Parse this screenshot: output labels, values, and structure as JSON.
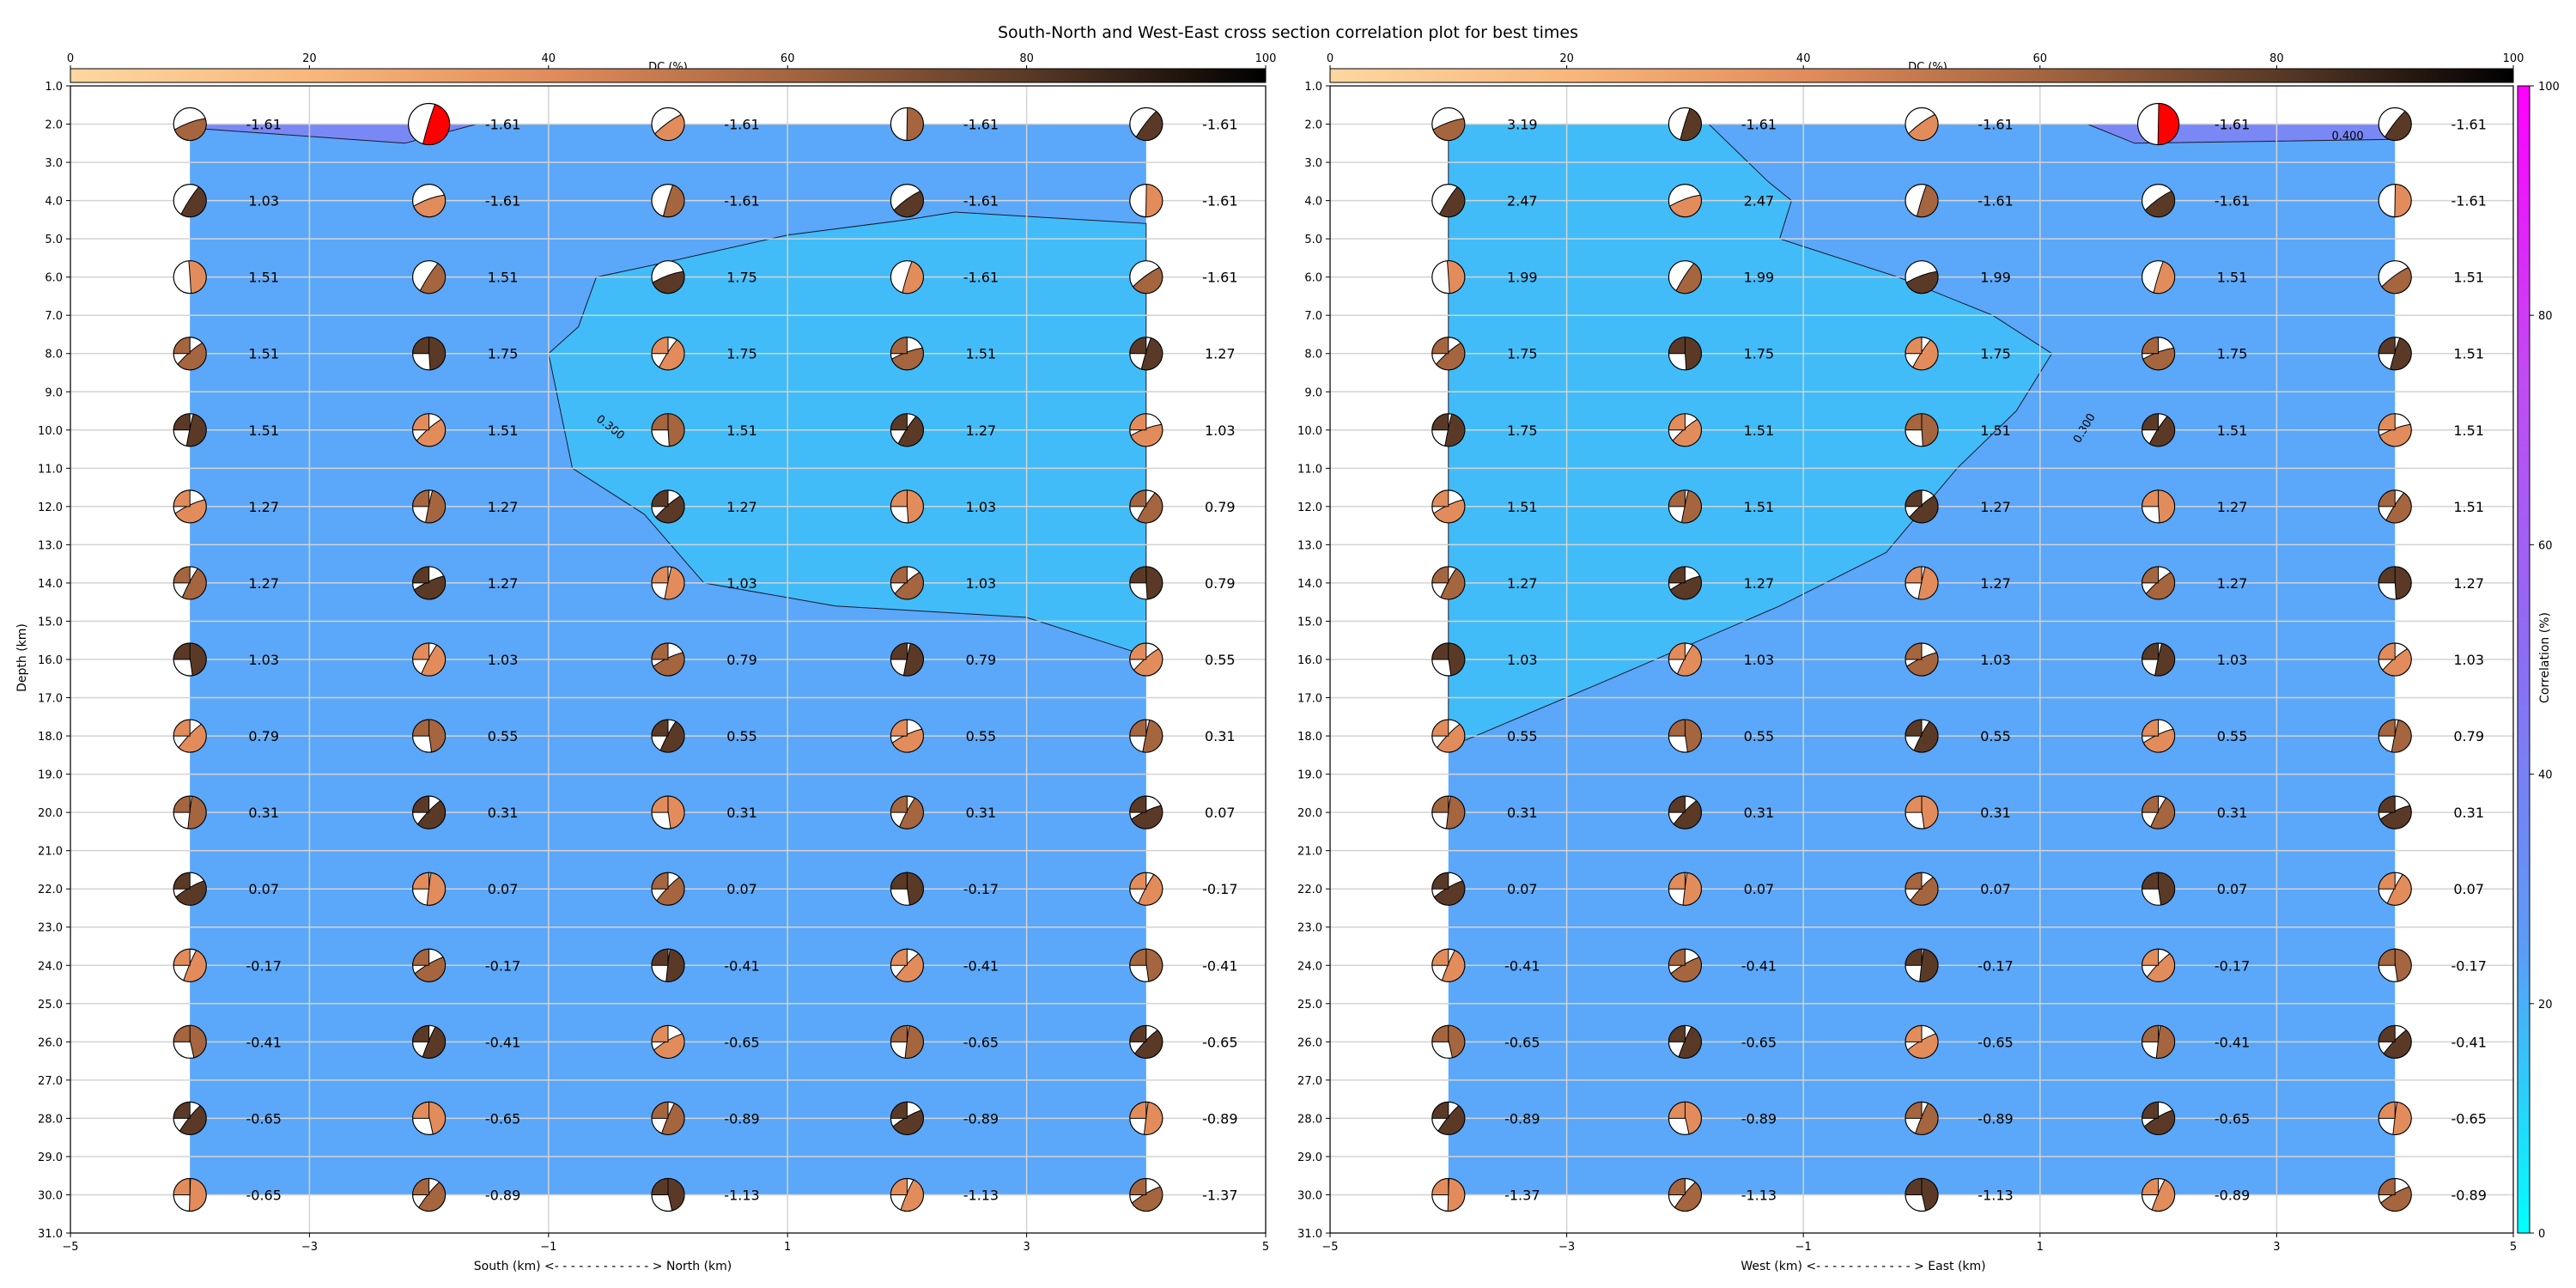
{
  "figure_title": "South-North and West-East cross section correlation plot for best times",
  "colors": {
    "background_blue": "#5ba7f9",
    "region_cyan": "#41bcf8",
    "region_violet": "#7a88f6",
    "beachball_white": "#ffffff",
    "beachball_red": "#ff0000",
    "grid": "#d3d3d3"
  },
  "dc_colorbar": {
    "label": "DC (%)",
    "ticks": [
      "0",
      "20",
      "40",
      "60",
      "80",
      "100"
    ],
    "colors": [
      "#fdd7a0",
      "#f8b77e",
      "#e28c5c",
      "#a5653f",
      "#5a3a27",
      "#000000"
    ]
  },
  "correlation_colorbar": {
    "label": "Correlation (%)",
    "ticks": [
      "0",
      "20",
      "40",
      "60",
      "80",
      "100"
    ],
    "colors": [
      "#00ffff",
      "#5b9cf6",
      "#8c6ef4",
      "#c24af3",
      "#ff00ff"
    ]
  },
  "chart_data": [
    {
      "type": "heatmap",
      "name": "south-north",
      "xlabel": "South (km) <- - - - - - - - - - - - > North (km)",
      "ylabel": "Depth (km)",
      "xlim": [
        -5,
        5
      ],
      "ylim": [
        31,
        1
      ],
      "xticks": [
        "−5",
        "−3",
        "−1",
        "1",
        "3",
        "5"
      ],
      "yticks": [
        "1.0",
        "2.0",
        "3.0",
        "4.0",
        "5.0",
        "6.0",
        "7.0",
        "8.0",
        "9.0",
        "10.0",
        "11.0",
        "12.0",
        "13.0",
        "14.0",
        "15.0",
        "16.0",
        "17.0",
        "18.0",
        "19.0",
        "20.0",
        "21.0",
        "22.0",
        "23.0",
        "24.0",
        "25.0",
        "26.0",
        "27.0",
        "28.0",
        "29.0",
        "30.0",
        "31.0"
      ],
      "x": [
        -4,
        -2,
        0,
        2,
        4
      ],
      "depths": [
        2,
        4,
        6,
        8,
        10,
        12,
        14,
        16,
        18,
        20,
        22,
        24,
        26,
        28,
        30
      ],
      "labels": [
        [
          "-1.61",
          "-1.61",
          "-1.61",
          "-1.61",
          "-1.61"
        ],
        [
          "1.03",
          "-1.61",
          "-1.61",
          "-1.61",
          "-1.61"
        ],
        [
          "1.51",
          "1.51",
          "1.75",
          "-1.61",
          "-1.61"
        ],
        [
          "1.51",
          "1.75",
          "1.75",
          "1.51",
          "1.27"
        ],
        [
          "1.51",
          "1.51",
          "1.51",
          "1.27",
          "1.03"
        ],
        [
          "1.27",
          "1.27",
          "1.27",
          "1.03",
          "0.79"
        ],
        [
          "1.27",
          "1.27",
          "1.03",
          "1.03",
          "0.79"
        ],
        [
          "1.03",
          "1.03",
          "0.79",
          "0.79",
          "0.55"
        ],
        [
          "0.79",
          "0.55",
          "0.55",
          "0.55",
          "0.31"
        ],
        [
          "0.31",
          "0.31",
          "0.31",
          "0.31",
          "0.07"
        ],
        [
          "0.07",
          "0.07",
          "0.07",
          "-0.17",
          "-0.17"
        ],
        [
          "-0.17",
          "-0.17",
          "-0.41",
          "-0.41",
          "-0.41"
        ],
        [
          "-0.41",
          "-0.41",
          "-0.65",
          "-0.65",
          "-0.65"
        ],
        [
          "-0.65",
          "-0.65",
          "-0.89",
          "-0.89",
          "-0.89"
        ],
        [
          "-0.65",
          "-0.89",
          "-1.13",
          "-1.13",
          "-1.37"
        ]
      ],
      "best_solution": {
        "x": -2,
        "depth": 2
      },
      "contours": [
        {
          "label": "0.300",
          "label_at": [
            -0.5,
            10.0
          ],
          "label_rotation": 38,
          "points": [
            [
              -1,
              8
            ],
            [
              -0.75,
              7.3
            ],
            [
              -0.6,
              6
            ],
            [
              0,
              5.6
            ],
            [
              1,
              4.9
            ],
            [
              2,
              4.5
            ],
            [
              2.4,
              4.3
            ],
            [
              4,
              4.6
            ],
            [
              4,
              15.9
            ],
            [
              3,
              14.9
            ],
            [
              1.4,
              14.6
            ],
            [
              0.3,
              14
            ],
            [
              -0.2,
              12.2
            ],
            [
              -0.8,
              11
            ],
            [
              -1,
              8
            ]
          ]
        },
        {
          "label": "",
          "points": [
            [
              -4,
              2
            ],
            [
              -1.6,
              2
            ],
            [
              -2.2,
              2.5
            ],
            [
              -4,
              2.1
            ]
          ]
        }
      ]
    },
    {
      "type": "heatmap",
      "name": "west-east",
      "xlabel": "West (km) <- - - - - - - - - - - - > East (km)",
      "ylabel": "",
      "xlim": [
        -5,
        5
      ],
      "ylim": [
        31,
        1
      ],
      "xticks": [
        "−5",
        "−3",
        "−1",
        "1",
        "3",
        "5"
      ],
      "yticks": [
        "1.0",
        "2.0",
        "3.0",
        "4.0",
        "5.0",
        "6.0",
        "7.0",
        "8.0",
        "9.0",
        "10.0",
        "11.0",
        "12.0",
        "13.0",
        "14.0",
        "15.0",
        "16.0",
        "17.0",
        "18.0",
        "19.0",
        "20.0",
        "21.0",
        "22.0",
        "23.0",
        "24.0",
        "25.0",
        "26.0",
        "27.0",
        "28.0",
        "29.0",
        "30.0",
        "31.0"
      ],
      "x": [
        -4,
        -2,
        0,
        2,
        4
      ],
      "depths": [
        2,
        4,
        6,
        8,
        10,
        12,
        14,
        16,
        18,
        20,
        22,
        24,
        26,
        28,
        30
      ],
      "labels": [
        [
          "3.19",
          "-1.61",
          "-1.61",
          "-1.61",
          "-1.61"
        ],
        [
          "2.47",
          "2.47",
          "-1.61",
          "-1.61",
          "-1.61"
        ],
        [
          "1.99",
          "1.99",
          "1.99",
          "1.51",
          "1.51"
        ],
        [
          "1.75",
          "1.75",
          "1.75",
          "1.75",
          "1.51"
        ],
        [
          "1.75",
          "1.51",
          "1.51",
          "1.51",
          "1.51"
        ],
        [
          "1.51",
          "1.51",
          "1.27",
          "1.27",
          "1.51"
        ],
        [
          "1.27",
          "1.27",
          "1.27",
          "1.27",
          "1.27"
        ],
        [
          "1.03",
          "1.03",
          "1.03",
          "1.03",
          "1.03"
        ],
        [
          "0.55",
          "0.55",
          "0.55",
          "0.55",
          "0.79"
        ],
        [
          "0.31",
          "0.31",
          "0.31",
          "0.31",
          "0.31"
        ],
        [
          "0.07",
          "0.07",
          "0.07",
          "0.07",
          "0.07"
        ],
        [
          "-0.41",
          "-0.41",
          "-0.17",
          "-0.17",
          "-0.17"
        ],
        [
          "-0.65",
          "-0.65",
          "-0.65",
          "-0.41",
          "-0.41"
        ],
        [
          "-0.89",
          "-0.89",
          "-0.89",
          "-0.65",
          "-0.65"
        ],
        [
          "-1.37",
          "-1.13",
          "-1.13",
          "-0.89",
          "-0.89"
        ]
      ],
      "best_solution": {
        "x": 2,
        "depth": 2
      },
      "contours": [
        {
          "label": "0.300",
          "label_at": [
            1.4,
            10.0
          ],
          "label_rotation": -60,
          "points": [
            [
              -4,
              2
            ],
            [
              -1.8,
              2
            ],
            [
              -1.3,
              3.5
            ],
            [
              -1.1,
              4
            ],
            [
              -1.2,
              5
            ],
            [
              -0.9,
              5.3
            ],
            [
              -0.2,
              6
            ],
            [
              0.6,
              7
            ],
            [
              1.1,
              8
            ],
            [
              0.8,
              9.5
            ],
            [
              0.3,
              11
            ],
            [
              -0.3,
              13.2
            ],
            [
              -1.2,
              14.6
            ],
            [
              -2.7,
              16.6
            ],
            [
              -4,
              18.3
            ],
            [
              -4,
              2
            ]
          ]
        },
        {
          "label": "0.400",
          "label_at": [
            3.6,
            2.4
          ],
          "label_rotation": 0,
          "points": [
            [
              1.4,
              2
            ],
            [
              4,
              2
            ],
            [
              4,
              2.4
            ],
            [
              1.8,
              2.5
            ],
            [
              1.4,
              2
            ]
          ]
        }
      ]
    }
  ]
}
